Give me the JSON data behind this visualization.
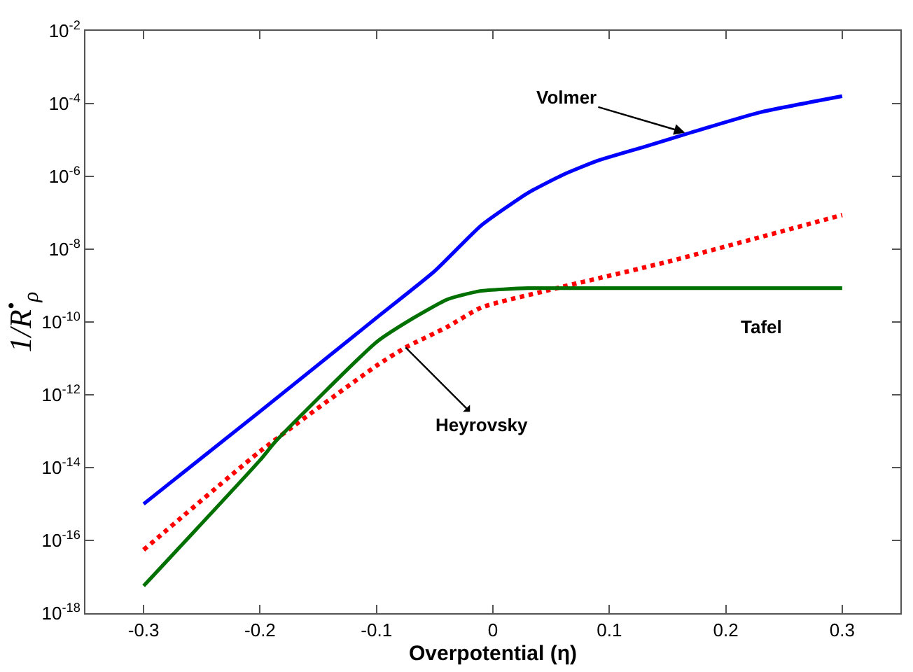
{
  "chart_data": {
    "type": "line",
    "xlabel": "Overpotential (η)",
    "ylabel": "1/R$^{•}$$_{ρ}$",
    "log": "y",
    "xlim": [
      -0.35,
      0.35
    ],
    "xticks": [
      -0.3,
      -0.2,
      -0.1,
      0,
      0.1,
      0.2,
      0.3
    ],
    "ylim": [
      1e-18,
      0.01
    ],
    "yticks": [
      {
        "value": 1e-18,
        "label": "10$^{-18}$"
      },
      {
        "value": 1e-16,
        "label": "10$^{-16}$"
      },
      {
        "value": 1e-14,
        "label": "10$^{-14}$"
      },
      {
        "value": 1e-12,
        "label": "10$^{-12}$"
      },
      {
        "value": 1e-10,
        "label": "10$^{-10}$"
      },
      {
        "value": 1e-08,
        "label": "10$^{-8}$"
      },
      {
        "value": 1e-06,
        "label": "10$^{-6}$"
      },
      {
        "value": 0.0001,
        "label": "10$^{-4}$"
      },
      {
        "value": 0.01,
        "label": "10$^{-2}$"
      }
    ],
    "series": [
      {
        "color": "#0000ff",
        "line_style": "solid",
        "x": [
          -0.3,
          -0.2,
          -0.1,
          -0.05,
          -0.01,
          0.03,
          0.06,
          0.09,
          0.13,
          0.17,
          0.23,
          0.3
        ],
        "values": [
          1e-15,
          3.5e-13,
          1.3e-10,
          2.5e-09,
          4.5e-08,
          3.5e-07,
          1.1e-06,
          2.7e-06,
          6.5e-06,
          1.6e-05,
          5.8e-05,
          0.00016
        ]
      },
      {
        "color": "#ff0000",
        "line_style": "dotted",
        "x": [
          -0.3,
          -0.2,
          -0.1,
          -0.075,
          -0.04,
          -0.01,
          0.06,
          0.15,
          0.3
        ],
        "values": [
          5.5e-17,
          2.8e-14,
          6.3e-12,
          2e-11,
          7.1e-11,
          2.5e-10,
          9.3e-10,
          4.5e-09,
          8.7e-08
        ]
      },
      {
        "color": "#007000",
        "line_style": "solid",
        "x": [
          -0.3,
          -0.2,
          -0.187,
          -0.1,
          -0.068,
          -0.039,
          -0.011,
          0.03,
          0.07,
          0.3
        ],
        "values": [
          5.6e-18,
          1.6e-14,
          5.1e-14,
          2.8e-11,
          1.3e-10,
          4.2e-10,
          7.1e-10,
          8.5e-10,
          8.5e-10,
          8.5e-10
        ]
      }
    ],
    "annotations": [
      {
        "text": "Volmer",
        "x": 0.165,
        "y": 1.6e-05
      },
      {
        "text": "Tafel",
        "x": 0.23,
        "y": 8.5e-10
      },
      {
        "text": "Heyrovsky",
        "x": -0.075,
        "y": 2e-11
      }
    ]
  }
}
